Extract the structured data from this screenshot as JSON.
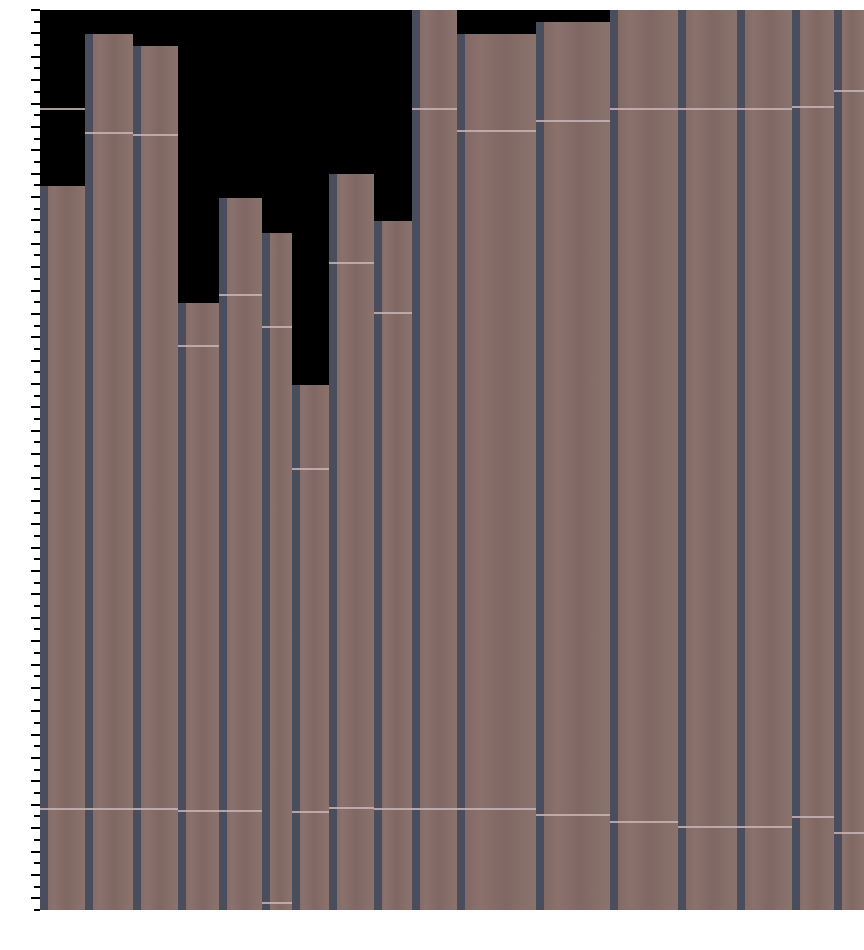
{
  "image": {
    "subject": "wood-planks",
    "colors": {
      "wood": "#8a716c",
      "gap": "#4a4d5c",
      "background": "#000000",
      "cut_line": "#c7b4b4"
    }
  }
}
